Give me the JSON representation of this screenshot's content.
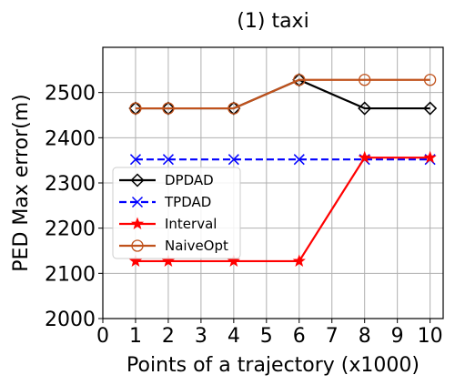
{
  "chart_data": {
    "type": "line",
    "title": "(1) taxi",
    "xlabel": "Points of a trajectory (x1000)",
    "ylabel": "PED Max error(m)",
    "xlim": [
      0,
      10.4
    ],
    "ylim": [
      2000,
      2600
    ],
    "xticks": [
      0,
      1,
      2,
      3,
      4,
      5,
      6,
      7,
      8,
      9,
      10
    ],
    "yticks": [
      2000,
      2100,
      2200,
      2300,
      2400,
      2500
    ],
    "grid": true,
    "legend_position": "center-left",
    "series": [
      {
        "name": "DPDAD",
        "color": "#000000",
        "dash": "solid",
        "marker": "diamond",
        "x": [
          1,
          2,
          4,
          6,
          8,
          10
        ],
        "values": [
          2465,
          2465,
          2465,
          2528,
          2465,
          2465
        ]
      },
      {
        "name": "TPDAD",
        "color": "#0000ff",
        "dash": "dashed",
        "marker": "x",
        "x": [
          1,
          2,
          4,
          6,
          8,
          10
        ],
        "values": [
          2352,
          2352,
          2352,
          2352,
          2352,
          2352
        ]
      },
      {
        "name": "Interval",
        "color": "#ff0000",
        "dash": "solid",
        "marker": "star",
        "x": [
          1,
          2,
          4,
          6,
          8,
          10
        ],
        "values": [
          2127,
          2127,
          2127,
          2127,
          2356,
          2356
        ]
      },
      {
        "name": "NaiveOpt",
        "color": "#c0521c",
        "dash": "solid",
        "marker": "circle",
        "x": [
          1,
          2,
          4,
          6,
          8,
          10
        ],
        "values": [
          2465,
          2465,
          2465,
          2528,
          2528,
          2528
        ]
      }
    ]
  }
}
